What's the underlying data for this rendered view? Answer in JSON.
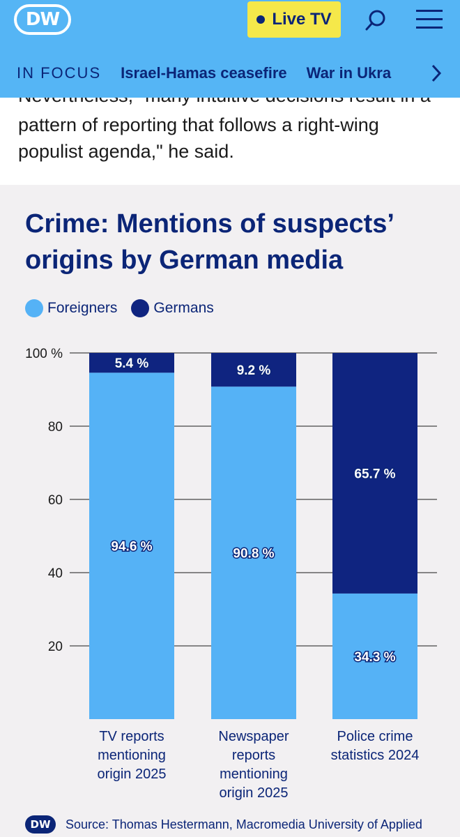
{
  "header": {
    "logo_text": "DW",
    "live_label": "Live TV",
    "focus_label": "IN FOCUS",
    "focus_links": [
      "Israel-Hamas ceasefire",
      "War in Ukra"
    ]
  },
  "article": {
    "cut_line": "Nevertheless, \"many intuitive decisions result in a",
    "paragraph": "pattern of reporting that follows a right-wing populist agenda,\" he said."
  },
  "chart": {
    "title": "Crime: Mentions of suspects’ origins by German media",
    "source_logo": "DW",
    "source": "Source: Thomas Hestermann, Macromedia University of Applied"
  },
  "colors": {
    "brand_light": "#55b5f5",
    "foreigners": "#55b2f6",
    "germans": "#0f2480",
    "text_dark": "#0b2577",
    "live_yellow": "#f5e84a"
  },
  "chart_data": {
    "type": "bar",
    "stacked": true,
    "categories": [
      "TV reports mentioning origin 2025",
      "Newspaper reports mentioning origin 2025",
      "Police crime statistics 2024"
    ],
    "category_lines": [
      [
        "TV reports",
        "mentioning",
        "origin 2025"
      ],
      [
        "Newspaper",
        "reports",
        "mentioning",
        "origin 2025"
      ],
      [
        "Police crime",
        "statistics 2024"
      ]
    ],
    "series": [
      {
        "name": "Foreigners",
        "values": [
          94.6,
          90.8,
          34.3
        ],
        "labels": [
          "94.6 %",
          "90.8 %",
          "34.3 %"
        ]
      },
      {
        "name": "Germans",
        "values": [
          5.4,
          9.2,
          65.7
        ],
        "labels": [
          "5.4 %",
          "9.2 %",
          "65.7 %"
        ]
      }
    ],
    "ylim": [
      0,
      100
    ],
    "yticks": [
      20,
      40,
      60,
      80,
      100
    ],
    "ytick_labels": [
      "20",
      "40",
      "60",
      "80",
      "100 %"
    ],
    "grid": true,
    "legend_position": "top-left"
  }
}
